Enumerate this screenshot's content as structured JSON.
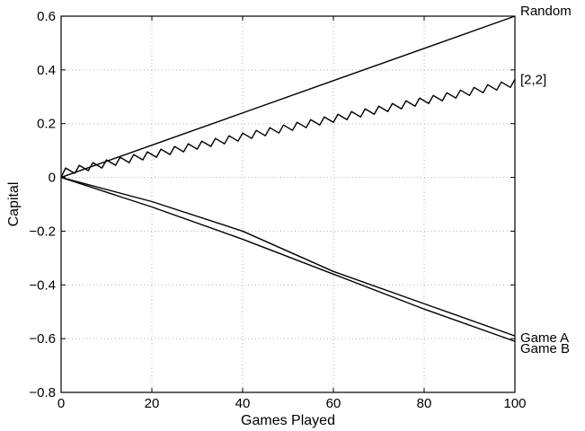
{
  "chart_data": {
    "type": "line",
    "xlabel": "Games Played",
    "ylabel": "Capital",
    "xlim": [
      0,
      100
    ],
    "ylim": [
      -0.8,
      0.6
    ],
    "xticks": [
      0,
      20,
      40,
      60,
      80,
      100
    ],
    "xtick_labels": [
      "0",
      "20",
      "40",
      "60",
      "80",
      "100"
    ],
    "yticks": [
      -0.8,
      -0.6,
      -0.4,
      -0.2,
      0,
      0.2,
      0.4,
      0.6
    ],
    "ytick_labels": [
      "−0.8",
      "−0.6",
      "−0.4",
      "−0.2",
      "0",
      "0.2",
      "0.4",
      "0.6"
    ],
    "grid": true,
    "series": [
      {
        "name": "Random",
        "x": [
          0,
          20,
          40,
          60,
          80,
          100
        ],
        "y": [
          0,
          0.12,
          0.24,
          0.36,
          0.48,
          0.6
        ]
      },
      {
        "name": "[2,2]",
        "x": [
          0,
          1,
          2,
          3,
          4,
          5,
          6,
          7,
          8,
          9,
          10,
          11,
          12,
          13,
          14,
          15,
          16,
          17,
          18,
          19,
          20,
          21,
          22,
          23,
          24,
          25,
          26,
          27,
          28,
          29,
          30,
          31,
          32,
          33,
          34,
          35,
          36,
          37,
          38,
          39,
          40,
          41,
          42,
          43,
          44,
          45,
          46,
          47,
          48,
          49,
          50,
          51,
          52,
          53,
          54,
          55,
          56,
          57,
          58,
          59,
          60,
          61,
          62,
          63,
          64,
          65,
          66,
          67,
          68,
          69,
          70,
          71,
          72,
          73,
          74,
          75,
          76,
          77,
          78,
          79,
          80,
          81,
          82,
          83,
          84,
          85,
          86,
          87,
          88,
          89,
          90,
          91,
          92,
          93,
          94,
          95,
          96,
          97,
          98,
          99,
          100
        ],
        "y": [
          0,
          0.035,
          0.025,
          0.015,
          0.045,
          0.035,
          0.025,
          0.055,
          0.045,
          0.035,
          0.065,
          0.055,
          0.045,
          0.075,
          0.065,
          0.055,
          0.085,
          0.075,
          0.065,
          0.095,
          0.085,
          0.075,
          0.105,
          0.095,
          0.085,
          0.115,
          0.105,
          0.095,
          0.125,
          0.115,
          0.105,
          0.135,
          0.125,
          0.115,
          0.145,
          0.135,
          0.125,
          0.155,
          0.145,
          0.135,
          0.165,
          0.155,
          0.145,
          0.175,
          0.165,
          0.155,
          0.185,
          0.175,
          0.165,
          0.195,
          0.185,
          0.175,
          0.205,
          0.195,
          0.185,
          0.215,
          0.205,
          0.195,
          0.225,
          0.215,
          0.205,
          0.235,
          0.225,
          0.215,
          0.245,
          0.235,
          0.225,
          0.255,
          0.245,
          0.235,
          0.265,
          0.255,
          0.245,
          0.275,
          0.265,
          0.255,
          0.285,
          0.275,
          0.265,
          0.295,
          0.285,
          0.275,
          0.305,
          0.295,
          0.285,
          0.315,
          0.305,
          0.295,
          0.325,
          0.315,
          0.305,
          0.335,
          0.325,
          0.315,
          0.345,
          0.335,
          0.325,
          0.355,
          0.345,
          0.335,
          0.365
        ]
      },
      {
        "name": "Game A",
        "x": [
          0,
          20,
          40,
          60,
          80,
          100
        ],
        "y": [
          0,
          -0.09,
          -0.2,
          -0.35,
          -0.47,
          -0.59
        ]
      },
      {
        "name": "Game B",
        "x": [
          0,
          20,
          40,
          60,
          80,
          100
        ],
        "y": [
          0,
          -0.11,
          -0.23,
          -0.36,
          -0.49,
          -0.61
        ]
      }
    ]
  }
}
